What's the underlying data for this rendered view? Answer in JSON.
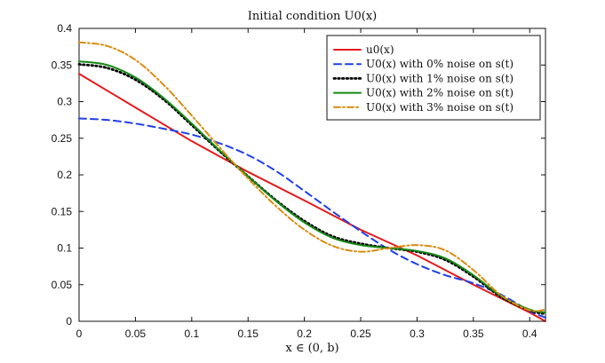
{
  "chart_data": {
    "type": "line",
    "title": "Initial condition U0(x)",
    "xlabel": "x ∈ (0, b)",
    "ylabel": "",
    "xlim": [
      0,
      0.414
    ],
    "ylim": [
      0,
      0.4
    ],
    "xticks": [
      0,
      0.05,
      0.1,
      0.15,
      0.2,
      0.25,
      0.3,
      0.35,
      0.4
    ],
    "yticks": [
      0,
      0.05,
      0.1,
      0.15,
      0.2,
      0.25,
      0.3,
      0.35,
      0.4
    ],
    "xtick_labels": [
      "0",
      "0.05",
      "0.1",
      "0.15",
      "0.2",
      "0.25",
      "0.3",
      "0.35",
      "0.4"
    ],
    "ytick_labels": [
      "0",
      "0.05",
      "0.1",
      "0.15",
      "0.2",
      "0.25",
      "0.3",
      "0.35",
      "0.4"
    ],
    "legend_position": "top-right",
    "series": [
      {
        "name": "u0(x)",
        "color": "#e41a1c",
        "style": "solid",
        "x": [
          0,
          0.05,
          0.1,
          0.15,
          0.2,
          0.25,
          0.3,
          0.35,
          0.4,
          0.414
        ],
        "y": [
          0.338,
          0.292,
          0.246,
          0.204,
          0.165,
          0.125,
          0.09,
          0.05,
          0.012,
          0.0
        ]
      },
      {
        "name": "U0(x) with 0% noise on s(t)",
        "color": "#1f3fe6",
        "style": "dashed",
        "x": [
          0,
          0.025,
          0.05,
          0.075,
          0.1,
          0.125,
          0.15,
          0.175,
          0.2,
          0.225,
          0.25,
          0.275,
          0.3,
          0.325,
          0.35,
          0.375,
          0.4,
          0.414
        ],
        "y": [
          0.277,
          0.275,
          0.27,
          0.263,
          0.255,
          0.243,
          0.227,
          0.205,
          0.178,
          0.15,
          0.123,
          0.098,
          0.078,
          0.063,
          0.052,
          0.036,
          0.014,
          0.005
        ]
      },
      {
        "name": "U0(x) with 1% noise on s(t)",
        "color": "#000000",
        "style": "dotted",
        "x": [
          0,
          0.025,
          0.05,
          0.075,
          0.1,
          0.125,
          0.15,
          0.175,
          0.2,
          0.225,
          0.25,
          0.275,
          0.3,
          0.325,
          0.35,
          0.375,
          0.4,
          0.414
        ],
        "y": [
          0.351,
          0.346,
          0.33,
          0.303,
          0.268,
          0.232,
          0.198,
          0.165,
          0.137,
          0.116,
          0.106,
          0.1,
          0.095,
          0.084,
          0.061,
          0.033,
          0.015,
          0.01
        ]
      },
      {
        "name": "U0(x) with 2% noise on s(t)",
        "color": "#138a13",
        "style": "solid",
        "x": [
          0,
          0.025,
          0.05,
          0.075,
          0.1,
          0.125,
          0.15,
          0.175,
          0.2,
          0.225,
          0.25,
          0.275,
          0.3,
          0.325,
          0.35,
          0.375,
          0.4,
          0.414
        ],
        "y": [
          0.355,
          0.35,
          0.333,
          0.305,
          0.27,
          0.233,
          0.198,
          0.164,
          0.135,
          0.114,
          0.104,
          0.1,
          0.096,
          0.086,
          0.063,
          0.034,
          0.016,
          0.012
        ]
      },
      {
        "name": "U0(x) with 3% noise on s(t)",
        "color": "#d98c0f",
        "style": "dashdot",
        "x": [
          0,
          0.025,
          0.05,
          0.075,
          0.1,
          0.125,
          0.15,
          0.175,
          0.2,
          0.225,
          0.25,
          0.275,
          0.3,
          0.325,
          0.35,
          0.375,
          0.4,
          0.414
        ],
        "y": [
          0.381,
          0.376,
          0.357,
          0.323,
          0.281,
          0.237,
          0.195,
          0.157,
          0.125,
          0.103,
          0.095,
          0.1,
          0.104,
          0.097,
          0.07,
          0.035,
          0.015,
          0.016
        ]
      }
    ]
  }
}
